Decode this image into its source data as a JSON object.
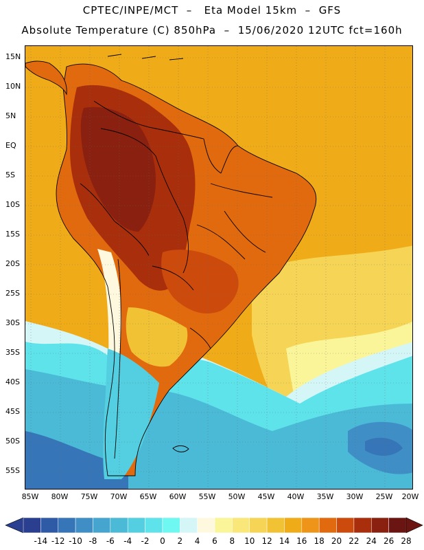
{
  "header": {
    "line1": "CPTEC/INPE/MCT  –   Eta Model 15km  –  GFS",
    "line2": "Absolute Temperature (C) 850hPa  –  15/06/2020 12UTC fct=160h"
  },
  "axes": {
    "lat_labels": [
      "15N",
      "10N",
      "5N",
      "EQ",
      "5S",
      "10S",
      "15S",
      "20S",
      "25S",
      "30S",
      "35S",
      "40S",
      "45S",
      "50S",
      "55S"
    ],
    "lon_labels": [
      "85W",
      "80W",
      "75W",
      "70W",
      "65W",
      "60W",
      "55W",
      "50W",
      "45W",
      "40W",
      "35W",
      "30W",
      "25W",
      "20W"
    ]
  },
  "colorbar": {
    "ticks": [
      "-14",
      "-12",
      "-10",
      "-8",
      "-6",
      "-4",
      "-2",
      "0",
      "2",
      "4",
      "6",
      "8",
      "10",
      "12",
      "14",
      "16",
      "18",
      "20",
      "22",
      "24",
      "26",
      "28"
    ],
    "colors": [
      "#2a3f8f",
      "#2f5aa6",
      "#3575b8",
      "#3f8fc6",
      "#46a5cf",
      "#4bbad6",
      "#53cfe1",
      "#5fe3eb",
      "#6ff7f2",
      "#d4f6f7",
      "#fdf8de",
      "#fbf59a",
      "#f9e77a",
      "#f6d455",
      "#f2c235",
      "#f0ab19",
      "#ee9418",
      "#e26a0e",
      "#cc4a0c",
      "#a92e0c",
      "#8a200f",
      "#6b1512"
    ]
  },
  "legend_colors": {
    "ocean_warm": "#f0ab19",
    "cold_ocean": "#4bbad6",
    "hot_land": "#a92e0c"
  }
}
